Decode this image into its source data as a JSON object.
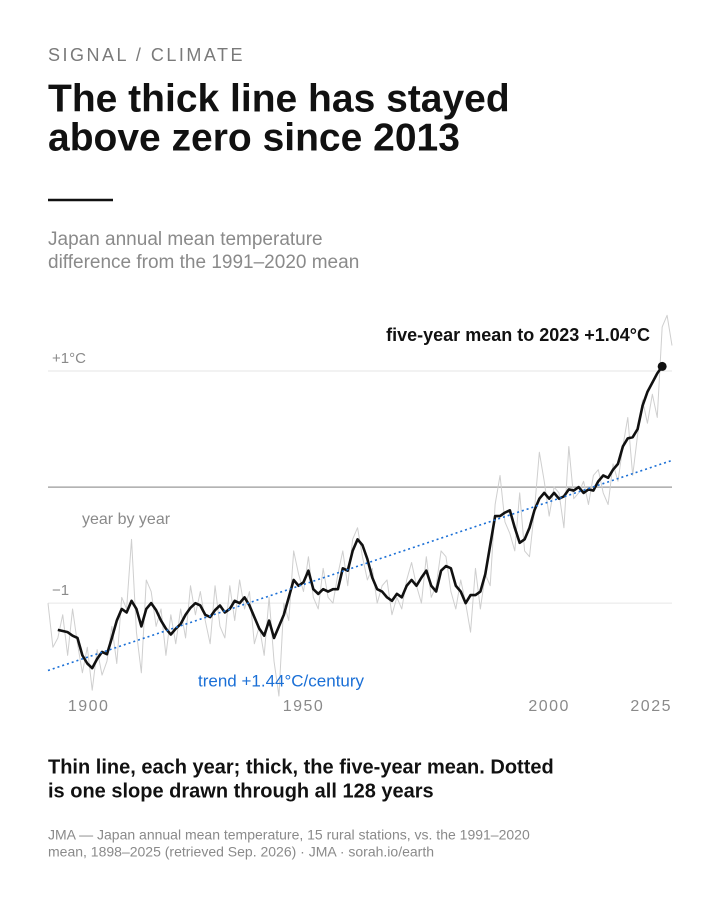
{
  "kicker": "SIGNAL / CLIMATE",
  "headline": [
    "The thick line has stayed",
    "above zero since 2013"
  ],
  "chart_data": {
    "type": "line",
    "subtitle": [
      "Japan annual mean temperature",
      "difference from the 1991–2020 mean"
    ],
    "x": [
      1898,
      1899,
      1900,
      1901,
      1902,
      1903,
      1904,
      1905,
      1906,
      1907,
      1908,
      1909,
      1910,
      1911,
      1912,
      1913,
      1914,
      1915,
      1916,
      1917,
      1918,
      1919,
      1920,
      1921,
      1922,
      1923,
      1924,
      1925,
      1926,
      1927,
      1928,
      1929,
      1930,
      1931,
      1932,
      1933,
      1934,
      1935,
      1936,
      1937,
      1938,
      1939,
      1940,
      1941,
      1942,
      1943,
      1944,
      1945,
      1946,
      1947,
      1948,
      1949,
      1950,
      1951,
      1952,
      1953,
      1954,
      1955,
      1956,
      1957,
      1958,
      1959,
      1960,
      1961,
      1962,
      1963,
      1964,
      1965,
      1966,
      1967,
      1968,
      1969,
      1970,
      1971,
      1972,
      1973,
      1974,
      1975,
      1976,
      1977,
      1978,
      1979,
      1980,
      1981,
      1982,
      1983,
      1984,
      1985,
      1986,
      1987,
      1988,
      1989,
      1990,
      1991,
      1992,
      1993,
      1994,
      1995,
      1996,
      1997,
      1998,
      1999,
      2000,
      2001,
      2002,
      2003,
      2004,
      2005,
      2006,
      2007,
      2008,
      2009,
      2010,
      2011,
      2012,
      2013,
      2014,
      2015,
      2016,
      2017,
      2018,
      2019,
      2020,
      2021,
      2022,
      2023,
      2024,
      2025
    ],
    "series": [
      {
        "color": "#cfcfcf",
        "width": 1,
        "values": [
          -1.0,
          -1.38,
          -1.3,
          -1.1,
          -1.45,
          -1.05,
          -1.35,
          -1.6,
          -1.38,
          -1.75,
          -1.4,
          -1.62,
          -1.5,
          -1.2,
          -1.52,
          -0.95,
          -1.05,
          -0.45,
          -1.25,
          -1.6,
          -0.8,
          -0.9,
          -1.2,
          -1.05,
          -1.45,
          -1.1,
          -1.35,
          -1.05,
          -1.3,
          -0.85,
          -1.1,
          -0.9,
          -1.15,
          -1.35,
          -0.85,
          -1.2,
          -1.3,
          -0.85,
          -1.15,
          -0.8,
          -1.05,
          -0.9,
          -1.35,
          -1.2,
          -1.45,
          -0.95,
          -1.5,
          -1.8,
          -1.0,
          -1.15,
          -0.55,
          -0.75,
          -0.9,
          -0.6,
          -0.95,
          -1.05,
          -0.7,
          -0.95,
          -1.0,
          -0.75,
          -0.55,
          -0.85,
          -0.45,
          -0.35,
          -0.6,
          -0.8,
          -0.7,
          -1.0,
          -0.85,
          -0.8,
          -1.1,
          -0.95,
          -1.05,
          -0.8,
          -0.65,
          -0.85,
          -1.0,
          -0.6,
          -0.95,
          -0.85,
          -0.55,
          -0.6,
          -0.9,
          -1.05,
          -0.8,
          -1.0,
          -1.25,
          -0.7,
          -1.05,
          -0.75,
          -0.85,
          -0.15,
          0.1,
          -0.3,
          -0.4,
          -0.55,
          -0.05,
          -0.55,
          -0.6,
          -0.2,
          0.3,
          0.05,
          -0.25,
          0.0,
          -0.05,
          -0.35,
          0.35,
          -0.1,
          -0.05,
          0.05,
          -0.15,
          0.1,
          0.15,
          -0.05,
          -0.15,
          0.2,
          0.05,
          0.35,
          0.6,
          0.1,
          0.45,
          0.75,
          0.55,
          0.8,
          0.6,
          1.38,
          1.48,
          1.22
        ]
      },
      {
        "color": "#111111",
        "width": 2.6,
        "values": [
          null,
          null,
          -1.23,
          -1.24,
          -1.25,
          -1.28,
          -1.3,
          -1.45,
          -1.52,
          -1.56,
          -1.48,
          -1.42,
          -1.44,
          -1.3,
          -1.15,
          -1.05,
          -1.08,
          -0.98,
          -1.05,
          -1.2,
          -1.05,
          -1.0,
          -1.06,
          -1.15,
          -1.22,
          -1.27,
          -1.22,
          -1.18,
          -1.1,
          -1.04,
          -1.0,
          -1.02,
          -1.1,
          -1.12,
          -1.06,
          -1.02,
          -1.08,
          -1.05,
          -0.98,
          -1.0,
          -0.95,
          -1.02,
          -1.12,
          -1.22,
          -1.28,
          -1.15,
          -1.3,
          -1.2,
          -1.1,
          -0.95,
          -0.8,
          -0.85,
          -0.82,
          -0.72,
          -0.88,
          -0.92,
          -0.88,
          -0.9,
          -0.88,
          -0.88,
          -0.7,
          -0.72,
          -0.55,
          -0.45,
          -0.5,
          -0.62,
          -0.78,
          -0.88,
          -0.9,
          -0.95,
          -0.98,
          -0.92,
          -0.95,
          -0.85,
          -0.8,
          -0.85,
          -0.78,
          -0.72,
          -0.85,
          -0.9,
          -0.72,
          -0.68,
          -0.7,
          -0.85,
          -0.9,
          -1.0,
          -0.93,
          -0.93,
          -0.9,
          -0.75,
          -0.5,
          -0.25,
          -0.25,
          -0.22,
          -0.2,
          -0.35,
          -0.48,
          -0.45,
          -0.35,
          -0.2,
          -0.1,
          -0.05,
          -0.1,
          -0.05,
          -0.1,
          -0.08,
          -0.02,
          -0.03,
          0.0,
          -0.05,
          -0.02,
          -0.03,
          0.05,
          0.1,
          0.08,
          0.15,
          0.2,
          0.35,
          0.42,
          0.43,
          0.5,
          0.7,
          0.82,
          0.9,
          0.98,
          1.04,
          null,
          null
        ]
      }
    ],
    "trend": {
      "x": [
        1898,
        2025
      ],
      "values": [
        -1.58,
        0.23
      ],
      "color": "#1a6fd6",
      "label": "trend +1.44°C/century"
    },
    "annotations": {
      "end": "five-year mean to 2023 +1.04°C",
      "annual": "year by year"
    },
    "xlim": [
      1898,
      2025
    ],
    "ylim": [
      -1.8,
      1.5
    ],
    "xticks": [
      1900,
      1950,
      2000,
      2025
    ],
    "yticks": [
      {
        "value": -1,
        "label": "−1"
      },
      {
        "value": 1,
        "label": "+1°C"
      }
    ],
    "baseline": 0,
    "grid": true,
    "caption": [
      "Thin line, each year; thick, the five-year mean. Dotted",
      "is one slope drawn through all 128 years"
    ],
    "source": [
      "JMA — Japan annual mean temperature, 15 rural stations, vs. the 1991–2020",
      "mean, 1898–2025 (retrieved Sep. 2026) · JMA · sorah.io/earth"
    ]
  }
}
